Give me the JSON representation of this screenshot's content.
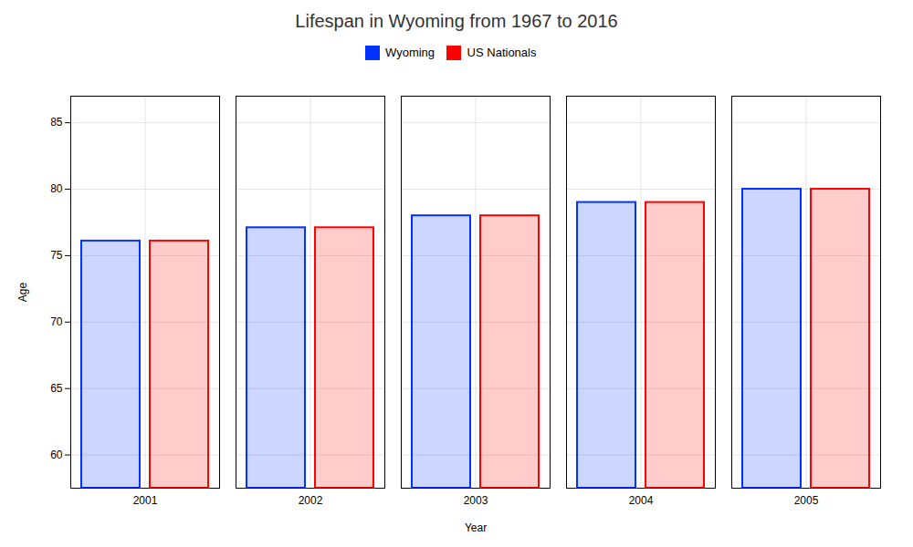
{
  "chart_data": {
    "type": "bar",
    "title": "Lifespan in Wyoming from 1967 to 2016",
    "categories": [
      "2001",
      "2002",
      "2003",
      "2004",
      "2005"
    ],
    "series": [
      {
        "name": "Wyoming",
        "color": "#0033ff",
        "values": [
          76.1,
          77.1,
          78.0,
          79.0,
          80.0
        ]
      },
      {
        "name": "US Nationals",
        "color": "#ff0000",
        "values": [
          76.1,
          77.1,
          78.0,
          79.0,
          80.0
        ]
      }
    ],
    "x_label": "Year",
    "y_label": "Age",
    "ylim": [
      57.5,
      87
    ],
    "yticks": [
      60,
      65,
      70,
      75,
      80,
      85
    ],
    "grid": true,
    "legend": "top"
  }
}
